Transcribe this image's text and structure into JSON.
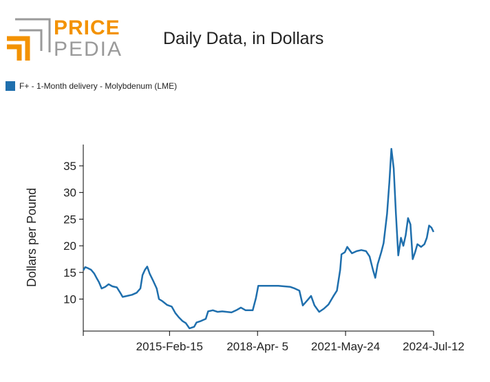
{
  "brand": {
    "logo_text_top": "PRICE",
    "logo_text_bottom": "PEDIA",
    "orange": "#f39200",
    "gray": "#9a9a9a"
  },
  "chart_data": {
    "type": "line",
    "title": "Daily Data, in Dollars",
    "ylabel": "Dollars per Pound",
    "xlabel": "",
    "ylim": [
      4,
      39
    ],
    "x_range": [
      "2012-01-20",
      "2024-07-12"
    ],
    "y_ticks": [
      10,
      15,
      20,
      25,
      30,
      35
    ],
    "x_ticks": [
      {
        "date": "2015-02-15",
        "label": "2015-Feb-15"
      },
      {
        "date": "2018-04-05",
        "label": "2018-Apr- 5"
      },
      {
        "date": "2021-05-24",
        "label": "2021-May-24"
      },
      {
        "date": "2024-07-12",
        "label": "2024-Jul-12"
      }
    ],
    "grid": false,
    "legend_position": "top-left",
    "series": [
      {
        "name": "F+ - 1-Month delivery - Molybdenum (LME)",
        "color": "#1f6fad",
        "points": [
          [
            "2012-01-20",
            15.4
          ],
          [
            "2012-02-15",
            16.0
          ],
          [
            "2012-03-20",
            15.8
          ],
          [
            "2012-05-01",
            15.5
          ],
          [
            "2012-06-10",
            14.8
          ],
          [
            "2012-07-10",
            14.0
          ],
          [
            "2012-08-10",
            13.2
          ],
          [
            "2012-09-15",
            12.0
          ],
          [
            "2012-11-01",
            12.3
          ],
          [
            "2012-12-15",
            12.8
          ],
          [
            "2013-02-01",
            12.4
          ],
          [
            "2013-04-01",
            12.2
          ],
          [
            "2013-05-15",
            11.2
          ],
          [
            "2013-06-15",
            10.4
          ],
          [
            "2013-08-15",
            10.6
          ],
          [
            "2013-10-15",
            10.8
          ],
          [
            "2013-12-15",
            11.2
          ],
          [
            "2014-02-01",
            12.0
          ],
          [
            "2014-03-01",
            14.5
          ],
          [
            "2014-04-01",
            15.5
          ],
          [
            "2014-05-01",
            16.1
          ],
          [
            "2014-06-01",
            14.8
          ],
          [
            "2014-07-15",
            13.5
          ],
          [
            "2014-09-01",
            12.0
          ],
          [
            "2014-10-01",
            10.0
          ],
          [
            "2014-11-15",
            9.6
          ],
          [
            "2015-01-15",
            8.9
          ],
          [
            "2015-03-15",
            8.6
          ],
          [
            "2015-05-01",
            7.4
          ],
          [
            "2015-06-15",
            6.6
          ],
          [
            "2015-08-01",
            5.9
          ],
          [
            "2015-09-15",
            5.5
          ],
          [
            "2015-11-01",
            4.5
          ],
          [
            "2016-01-01",
            4.8
          ],
          [
            "2016-02-01",
            5.6
          ],
          [
            "2016-04-01",
            5.9
          ],
          [
            "2016-06-01",
            6.3
          ],
          [
            "2016-07-01",
            7.7
          ],
          [
            "2016-09-01",
            7.9
          ],
          [
            "2016-11-01",
            7.6
          ],
          [
            "2017-01-01",
            7.7
          ],
          [
            "2017-03-01",
            7.6
          ],
          [
            "2017-05-01",
            7.5
          ],
          [
            "2017-07-01",
            7.9
          ],
          [
            "2017-09-01",
            8.4
          ],
          [
            "2017-11-01",
            7.9
          ],
          [
            "2018-02-01",
            7.9
          ],
          [
            "2018-03-15",
            10.2
          ],
          [
            "2018-04-15",
            12.5
          ],
          [
            "2018-08-01",
            12.5
          ],
          [
            "2019-01-01",
            12.5
          ],
          [
            "2019-06-01",
            12.3
          ],
          [
            "2019-08-01",
            12.0
          ],
          [
            "2019-10-01",
            11.6
          ],
          [
            "2019-11-15",
            8.8
          ],
          [
            "2020-01-15",
            9.8
          ],
          [
            "2020-03-01",
            10.6
          ],
          [
            "2020-04-15",
            8.8
          ],
          [
            "2020-06-15",
            7.6
          ],
          [
            "2020-08-15",
            8.2
          ],
          [
            "2020-10-15",
            9.0
          ],
          [
            "2020-12-15",
            10.5
          ],
          [
            "2021-02-01",
            11.6
          ],
          [
            "2021-03-15",
            15.5
          ],
          [
            "2021-04-01",
            18.4
          ],
          [
            "2021-05-15",
            18.8
          ],
          [
            "2021-06-15",
            19.8
          ],
          [
            "2021-08-15",
            18.6
          ],
          [
            "2021-10-15",
            19.0
          ],
          [
            "2021-12-15",
            19.2
          ],
          [
            "2022-02-15",
            19.0
          ],
          [
            "2022-04-01",
            18.0
          ],
          [
            "2022-05-15",
            15.5
          ],
          [
            "2022-06-15",
            14.0
          ],
          [
            "2022-07-15",
            16.5
          ],
          [
            "2022-09-01",
            18.8
          ],
          [
            "2022-10-01",
            20.5
          ],
          [
            "2022-11-15",
            26.0
          ],
          [
            "2022-12-15",
            32.0
          ],
          [
            "2023-01-10",
            38.2
          ],
          [
            "2023-02-10",
            34.5
          ],
          [
            "2023-03-10",
            26.0
          ],
          [
            "2023-04-10",
            18.2
          ],
          [
            "2023-05-15",
            21.5
          ],
          [
            "2023-06-15",
            20.0
          ],
          [
            "2023-07-15",
            22.0
          ],
          [
            "2023-08-15",
            25.2
          ],
          [
            "2023-09-15",
            24.0
          ],
          [
            "2023-10-15",
            17.5
          ],
          [
            "2023-11-15",
            18.8
          ],
          [
            "2023-12-15",
            20.3
          ],
          [
            "2024-02-01",
            19.8
          ],
          [
            "2024-03-15",
            20.3
          ],
          [
            "2024-04-15",
            21.5
          ],
          [
            "2024-05-15",
            23.8
          ],
          [
            "2024-06-15",
            23.4
          ],
          [
            "2024-07-12",
            22.6
          ]
        ]
      }
    ]
  }
}
